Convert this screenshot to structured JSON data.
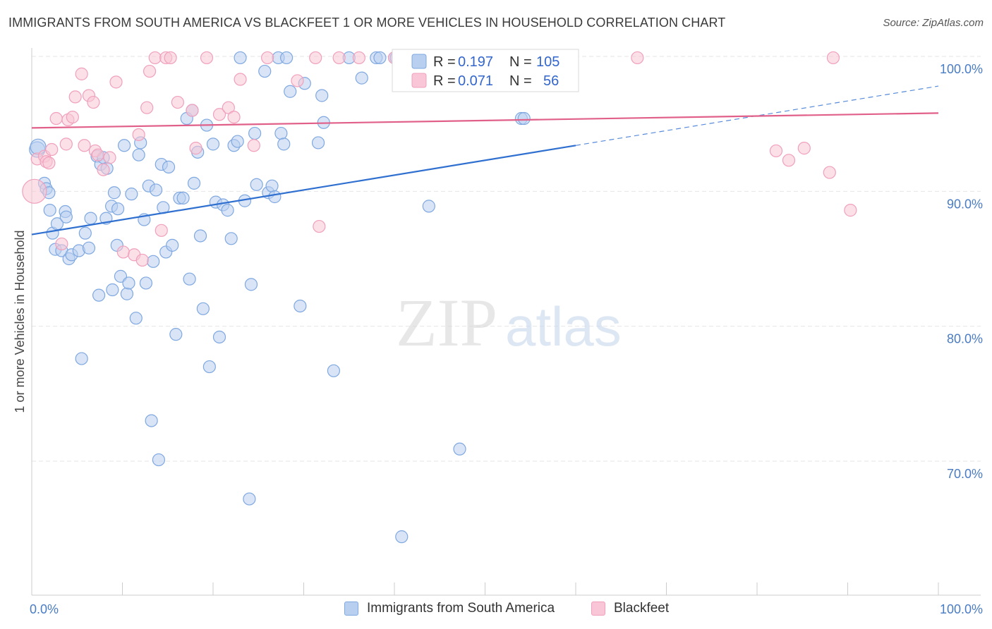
{
  "chart_data": {
    "type": "scatter",
    "title": "IMMIGRANTS FROM SOUTH AMERICA VS BLACKFEET 1 OR MORE VEHICLES IN HOUSEHOLD CORRELATION CHART",
    "source": "Source: ZipAtlas.com",
    "xlabel": "",
    "ylabel": "1 or more Vehicles in Household",
    "xlim": [
      0,
      100
    ],
    "ylim": [
      60.0,
      101.0
    ],
    "x_tick_labels": [
      "0.0%",
      "100.0%"
    ],
    "y_ticks": [
      {
        "value": 100,
        "label": "100.0%"
      },
      {
        "value": 90,
        "label": "90.0%"
      },
      {
        "value": 80,
        "label": "80.0%"
      },
      {
        "value": 70,
        "label": "70.0%"
      }
    ],
    "watermark": {
      "zip": "ZIP",
      "atlas": "atlas"
    },
    "legend": {
      "position": "top-center",
      "entries": [
        {
          "series": "Immigrants from South America",
          "r_label": "R =",
          "r": "0.197",
          "n_label": "N =",
          "n": "105"
        },
        {
          "series": "Blackfeet",
          "r_label": "R =",
          "r": "0.071",
          "n_label": "N =",
          "n": "56"
        }
      ]
    },
    "series": [
      {
        "name": "Immigrants from South America",
        "color": "#7fa8e0",
        "fill": "#b9cff0",
        "line_color": "#2f6fd0",
        "trend": {
          "x0": 0,
          "y0": 86.8,
          "x1": 60,
          "y1": 93.4,
          "dash_x1": 100,
          "dash_y1": 97.8
        },
        "points": [
          [
            0.6,
            93.1
          ],
          [
            0.7,
            93.3
          ],
          [
            1.4,
            90.6
          ],
          [
            1.6,
            90.2
          ],
          [
            1.9,
            89.9
          ],
          [
            2.0,
            88.6
          ],
          [
            2.3,
            86.9
          ],
          [
            2.6,
            85.7
          ],
          [
            2.8,
            87.6
          ],
          [
            3.3,
            85.6
          ],
          [
            3.7,
            88.5
          ],
          [
            3.8,
            88.1
          ],
          [
            4.1,
            85.0
          ],
          [
            4.4,
            85.3
          ],
          [
            5.2,
            85.6
          ],
          [
            5.5,
            77.6
          ],
          [
            5.9,
            86.9
          ],
          [
            6.3,
            85.8
          ],
          [
            6.5,
            88.0
          ],
          [
            7.2,
            92.6
          ],
          [
            7.4,
            82.3
          ],
          [
            7.6,
            92.0
          ],
          [
            7.9,
            92.5
          ],
          [
            8.2,
            88.0
          ],
          [
            8.3,
            91.7
          ],
          [
            8.8,
            88.9
          ],
          [
            8.9,
            82.7
          ],
          [
            9.1,
            89.9
          ],
          [
            9.4,
            86.0
          ],
          [
            9.5,
            88.7
          ],
          [
            9.8,
            83.7
          ],
          [
            10.2,
            93.4
          ],
          [
            10.5,
            82.4
          ],
          [
            10.7,
            83.2
          ],
          [
            11.0,
            89.8
          ],
          [
            11.5,
            80.6
          ],
          [
            11.8,
            92.7
          ],
          [
            12.0,
            93.6
          ],
          [
            12.4,
            87.9
          ],
          [
            12.6,
            83.2
          ],
          [
            12.9,
            90.4
          ],
          [
            13.2,
            73.0
          ],
          [
            13.4,
            84.8
          ],
          [
            13.7,
            90.1
          ],
          [
            14.0,
            70.1
          ],
          [
            14.3,
            92.0
          ],
          [
            14.5,
            88.8
          ],
          [
            14.8,
            85.5
          ],
          [
            15.1,
            91.8
          ],
          [
            15.5,
            86.0
          ],
          [
            15.9,
            79.4
          ],
          [
            16.3,
            89.5
          ],
          [
            16.7,
            89.5
          ],
          [
            17.1,
            95.4
          ],
          [
            17.4,
            83.5
          ],
          [
            17.7,
            96.0
          ],
          [
            17.9,
            90.6
          ],
          [
            18.3,
            92.9
          ],
          [
            18.6,
            86.7
          ],
          [
            18.9,
            81.3
          ],
          [
            19.3,
            94.9
          ],
          [
            19.6,
            77.0
          ],
          [
            20.0,
            93.5
          ],
          [
            20.3,
            89.2
          ],
          [
            20.7,
            79.2
          ],
          [
            21.1,
            89.0
          ],
          [
            21.6,
            88.6
          ],
          [
            22.0,
            86.5
          ],
          [
            22.3,
            93.4
          ],
          [
            22.7,
            93.7
          ],
          [
            23.0,
            99.9
          ],
          [
            23.5,
            89.3
          ],
          [
            24.0,
            67.2
          ],
          [
            24.2,
            83.1
          ],
          [
            24.6,
            94.3
          ],
          [
            24.8,
            90.5
          ],
          [
            25.7,
            98.9
          ],
          [
            26.1,
            89.9
          ],
          [
            26.5,
            90.4
          ],
          [
            26.8,
            89.6
          ],
          [
            27.2,
            99.9
          ],
          [
            27.5,
            94.3
          ],
          [
            27.8,
            93.5
          ],
          [
            28.1,
            99.9
          ],
          [
            28.5,
            97.4
          ],
          [
            29.6,
            81.5
          ],
          [
            30.1,
            98.0
          ],
          [
            31.6,
            93.6
          ],
          [
            32.0,
            97.1
          ],
          [
            32.2,
            95.1
          ],
          [
            33.3,
            76.7
          ],
          [
            35.0,
            99.9
          ],
          [
            36.4,
            98.4
          ],
          [
            38.0,
            99.9
          ],
          [
            38.4,
            99.9
          ],
          [
            40.0,
            99.9
          ],
          [
            40.2,
            99.9
          ],
          [
            40.8,
            64.4
          ],
          [
            43.2,
            99.9
          ],
          [
            43.8,
            88.9
          ],
          [
            47.2,
            70.9
          ],
          [
            49.1,
            99.9
          ],
          [
            54.0,
            95.4
          ],
          [
            54.3,
            95.4
          ],
          [
            59.4,
            99.9
          ]
        ]
      },
      {
        "name": "Blackfeet",
        "color": "#f0a0bc",
        "fill": "#f8c6d6",
        "line_color": "#e0608a",
        "trend": {
          "x0": 0,
          "y0": 94.7,
          "x1": 100,
          "y1": 95.8
        },
        "points": [
          [
            0.3,
            90.0
          ],
          [
            0.6,
            92.4
          ],
          [
            1.4,
            92.6
          ],
          [
            1.6,
            92.2
          ],
          [
            1.9,
            92.1
          ],
          [
            2.2,
            93.1
          ],
          [
            2.7,
            95.4
          ],
          [
            3.3,
            86.1
          ],
          [
            3.8,
            93.5
          ],
          [
            4.0,
            95.3
          ],
          [
            4.5,
            95.5
          ],
          [
            4.8,
            97.0
          ],
          [
            5.5,
            98.7
          ],
          [
            5.8,
            93.4
          ],
          [
            6.3,
            97.1
          ],
          [
            6.8,
            96.6
          ],
          [
            7.0,
            93.0
          ],
          [
            7.3,
            92.7
          ],
          [
            7.9,
            91.6
          ],
          [
            8.6,
            92.5
          ],
          [
            9.3,
            98.1
          ],
          [
            10.1,
            85.5
          ],
          [
            11.3,
            85.3
          ],
          [
            11.8,
            94.2
          ],
          [
            12.2,
            84.9
          ],
          [
            12.7,
            96.2
          ],
          [
            13.0,
            98.9
          ],
          [
            13.6,
            99.9
          ],
          [
            14.3,
            87.1
          ],
          [
            14.8,
            99.9
          ],
          [
            15.3,
            99.9
          ],
          [
            16.1,
            96.6
          ],
          [
            17.7,
            96.0
          ],
          [
            18.1,
            93.2
          ],
          [
            19.3,
            99.9
          ],
          [
            20.7,
            95.7
          ],
          [
            21.7,
            96.2
          ],
          [
            22.3,
            95.5
          ],
          [
            23.0,
            98.3
          ],
          [
            24.5,
            93.4
          ],
          [
            26.0,
            99.9
          ],
          [
            29.3,
            98.2
          ],
          [
            31.3,
            99.9
          ],
          [
            31.7,
            87.4
          ],
          [
            33.9,
            99.9
          ],
          [
            36.1,
            99.9
          ],
          [
            40.0,
            99.9
          ],
          [
            42.2,
            99.9
          ],
          [
            59.4,
            99.9
          ],
          [
            66.8,
            99.9
          ],
          [
            82.1,
            93.0
          ],
          [
            83.5,
            92.3
          ],
          [
            85.2,
            93.2
          ],
          [
            88.0,
            91.4
          ],
          [
            88.4,
            99.9
          ],
          [
            90.3,
            88.6
          ]
        ]
      }
    ]
  }
}
